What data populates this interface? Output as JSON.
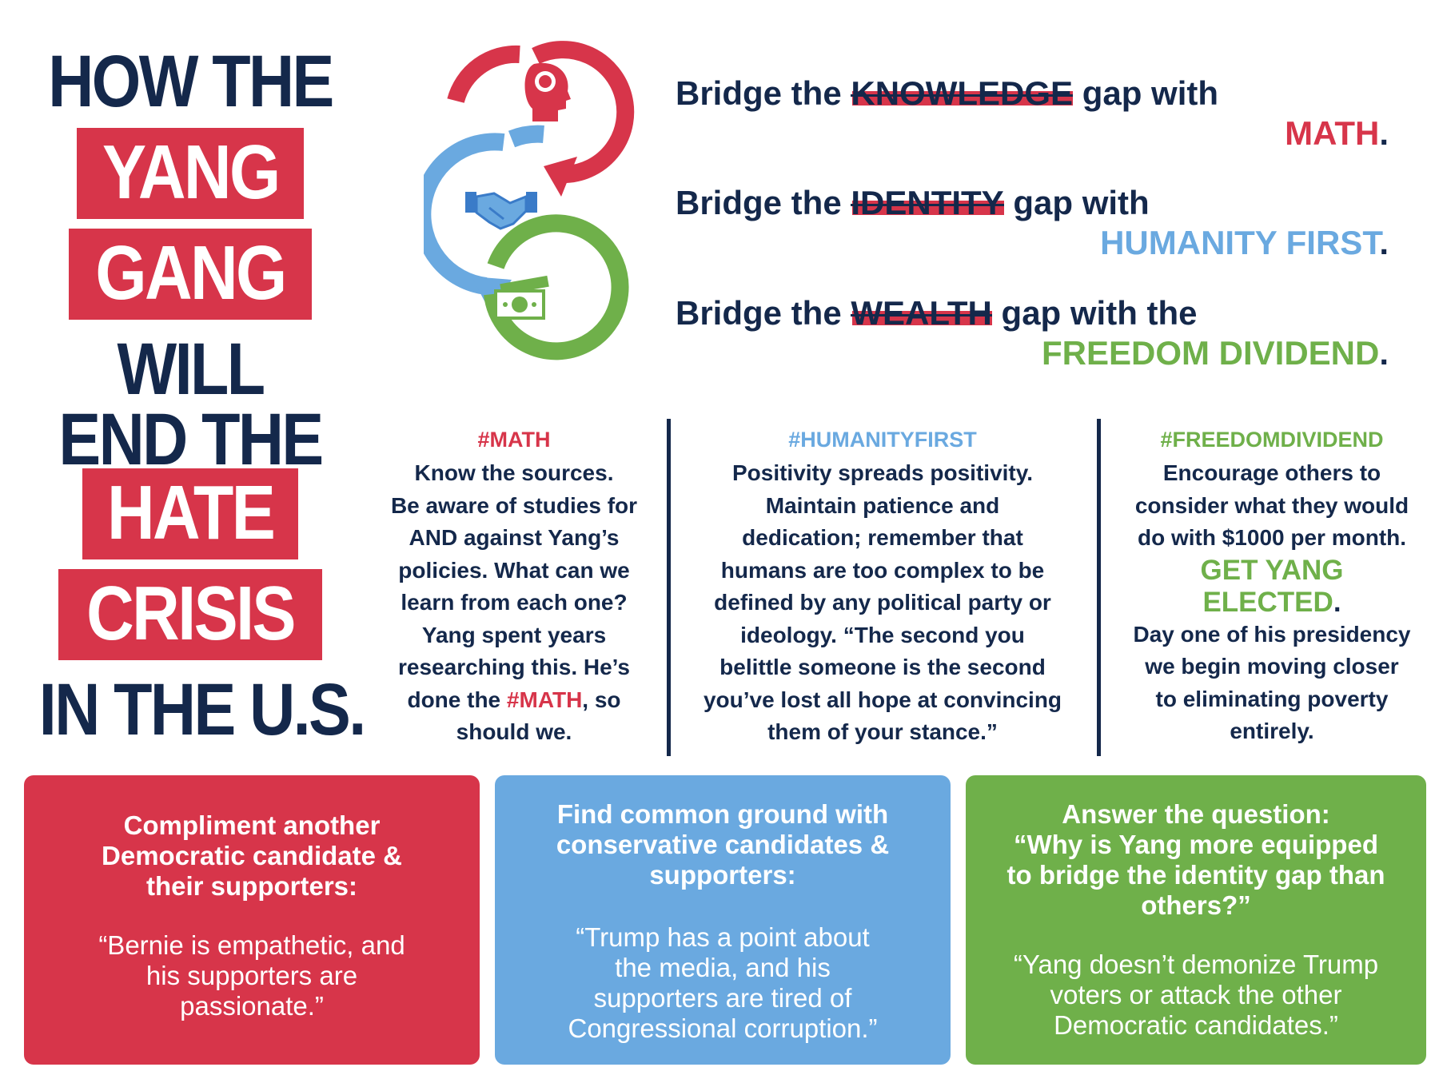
{
  "colors": {
    "navy": "#14284b",
    "red": "#d7354a",
    "blue": "#6aa9e0",
    "green": "#6fb04a"
  },
  "headline": {
    "l1": "HOW THE",
    "b1": "YANG",
    "b2": "GANG",
    "l2": "WILL",
    "l3": "END THE",
    "b3": "HATE",
    "b4": "CRISIS",
    "l4": "IN THE U.S."
  },
  "icons": [
    "brain-head-icon",
    "handshake-icon",
    "money-stack-icon"
  ],
  "bridges": [
    {
      "pre": "Bridge the",
      "gap": "KNOWLEDGE",
      "post": "gap with",
      "solution": "MATH",
      "end": "."
    },
    {
      "pre": "Bridge the",
      "gap": "IDENTITY",
      "post": "gap with",
      "solution": "HUMANITY FIRST",
      "end": "."
    },
    {
      "pre": "Bridge the",
      "gap": "WEALTH",
      "post": "gap with the",
      "solution": "FREEDOM DIVIDEND",
      "end": "."
    }
  ],
  "columns": {
    "math": {
      "tag": "#MATH",
      "lines": [
        "Know the sources.",
        "Be aware of studies for",
        "AND against Yang’s",
        "policies. What can we",
        "learn from each one?",
        "Yang spent years",
        "researching this. He’s"
      ],
      "last_pre": "done the ",
      "last_hl": "#MATH",
      "last_post": ", so",
      "tail": "should we."
    },
    "humanity": {
      "tag": "#HUMANITYFIRST",
      "lines": [
        "Positivity spreads positivity.",
        "Maintain patience and",
        "dedication; remember that",
        "humans are too complex to be",
        "defined by any political party or",
        "ideology. “The second you",
        "belittle someone is the second",
        "you’ve lost all hope at convincing",
        "them of your stance.”"
      ]
    },
    "freedom": {
      "tag": "#FREEDOMDIVIDEND",
      "lines": [
        "Encourage others to",
        "consider what they would",
        "do with $1000 per month."
      ],
      "big1": "GET YANG",
      "big2": "ELECTED",
      "big_end": ".",
      "after": [
        "Day one of his presidency",
        "we begin moving closer",
        "to eliminating poverty",
        "entirely."
      ]
    }
  },
  "cards": [
    {
      "head": [
        "Compliment another",
        "Democratic candidate &",
        "their supporters:"
      ],
      "quote": [
        "“Bernie is empathetic, and",
        "his supporters are",
        "passionate.”"
      ]
    },
    {
      "head": [
        "Find common ground with",
        "conservative candidates &",
        "supporters:"
      ],
      "quote": [
        "“Trump has a point about",
        "the media, and his",
        "supporters are tired of",
        "Congressional corruption.”"
      ]
    },
    {
      "head": [
        "Answer the question:",
        "“Why is Yang more equipped",
        "to bridge the identity gap than",
        "others?”"
      ],
      "quote": [
        "“Yang doesn’t demonize Trump",
        "voters or attack the other",
        "Democratic candidates.”"
      ]
    }
  ]
}
